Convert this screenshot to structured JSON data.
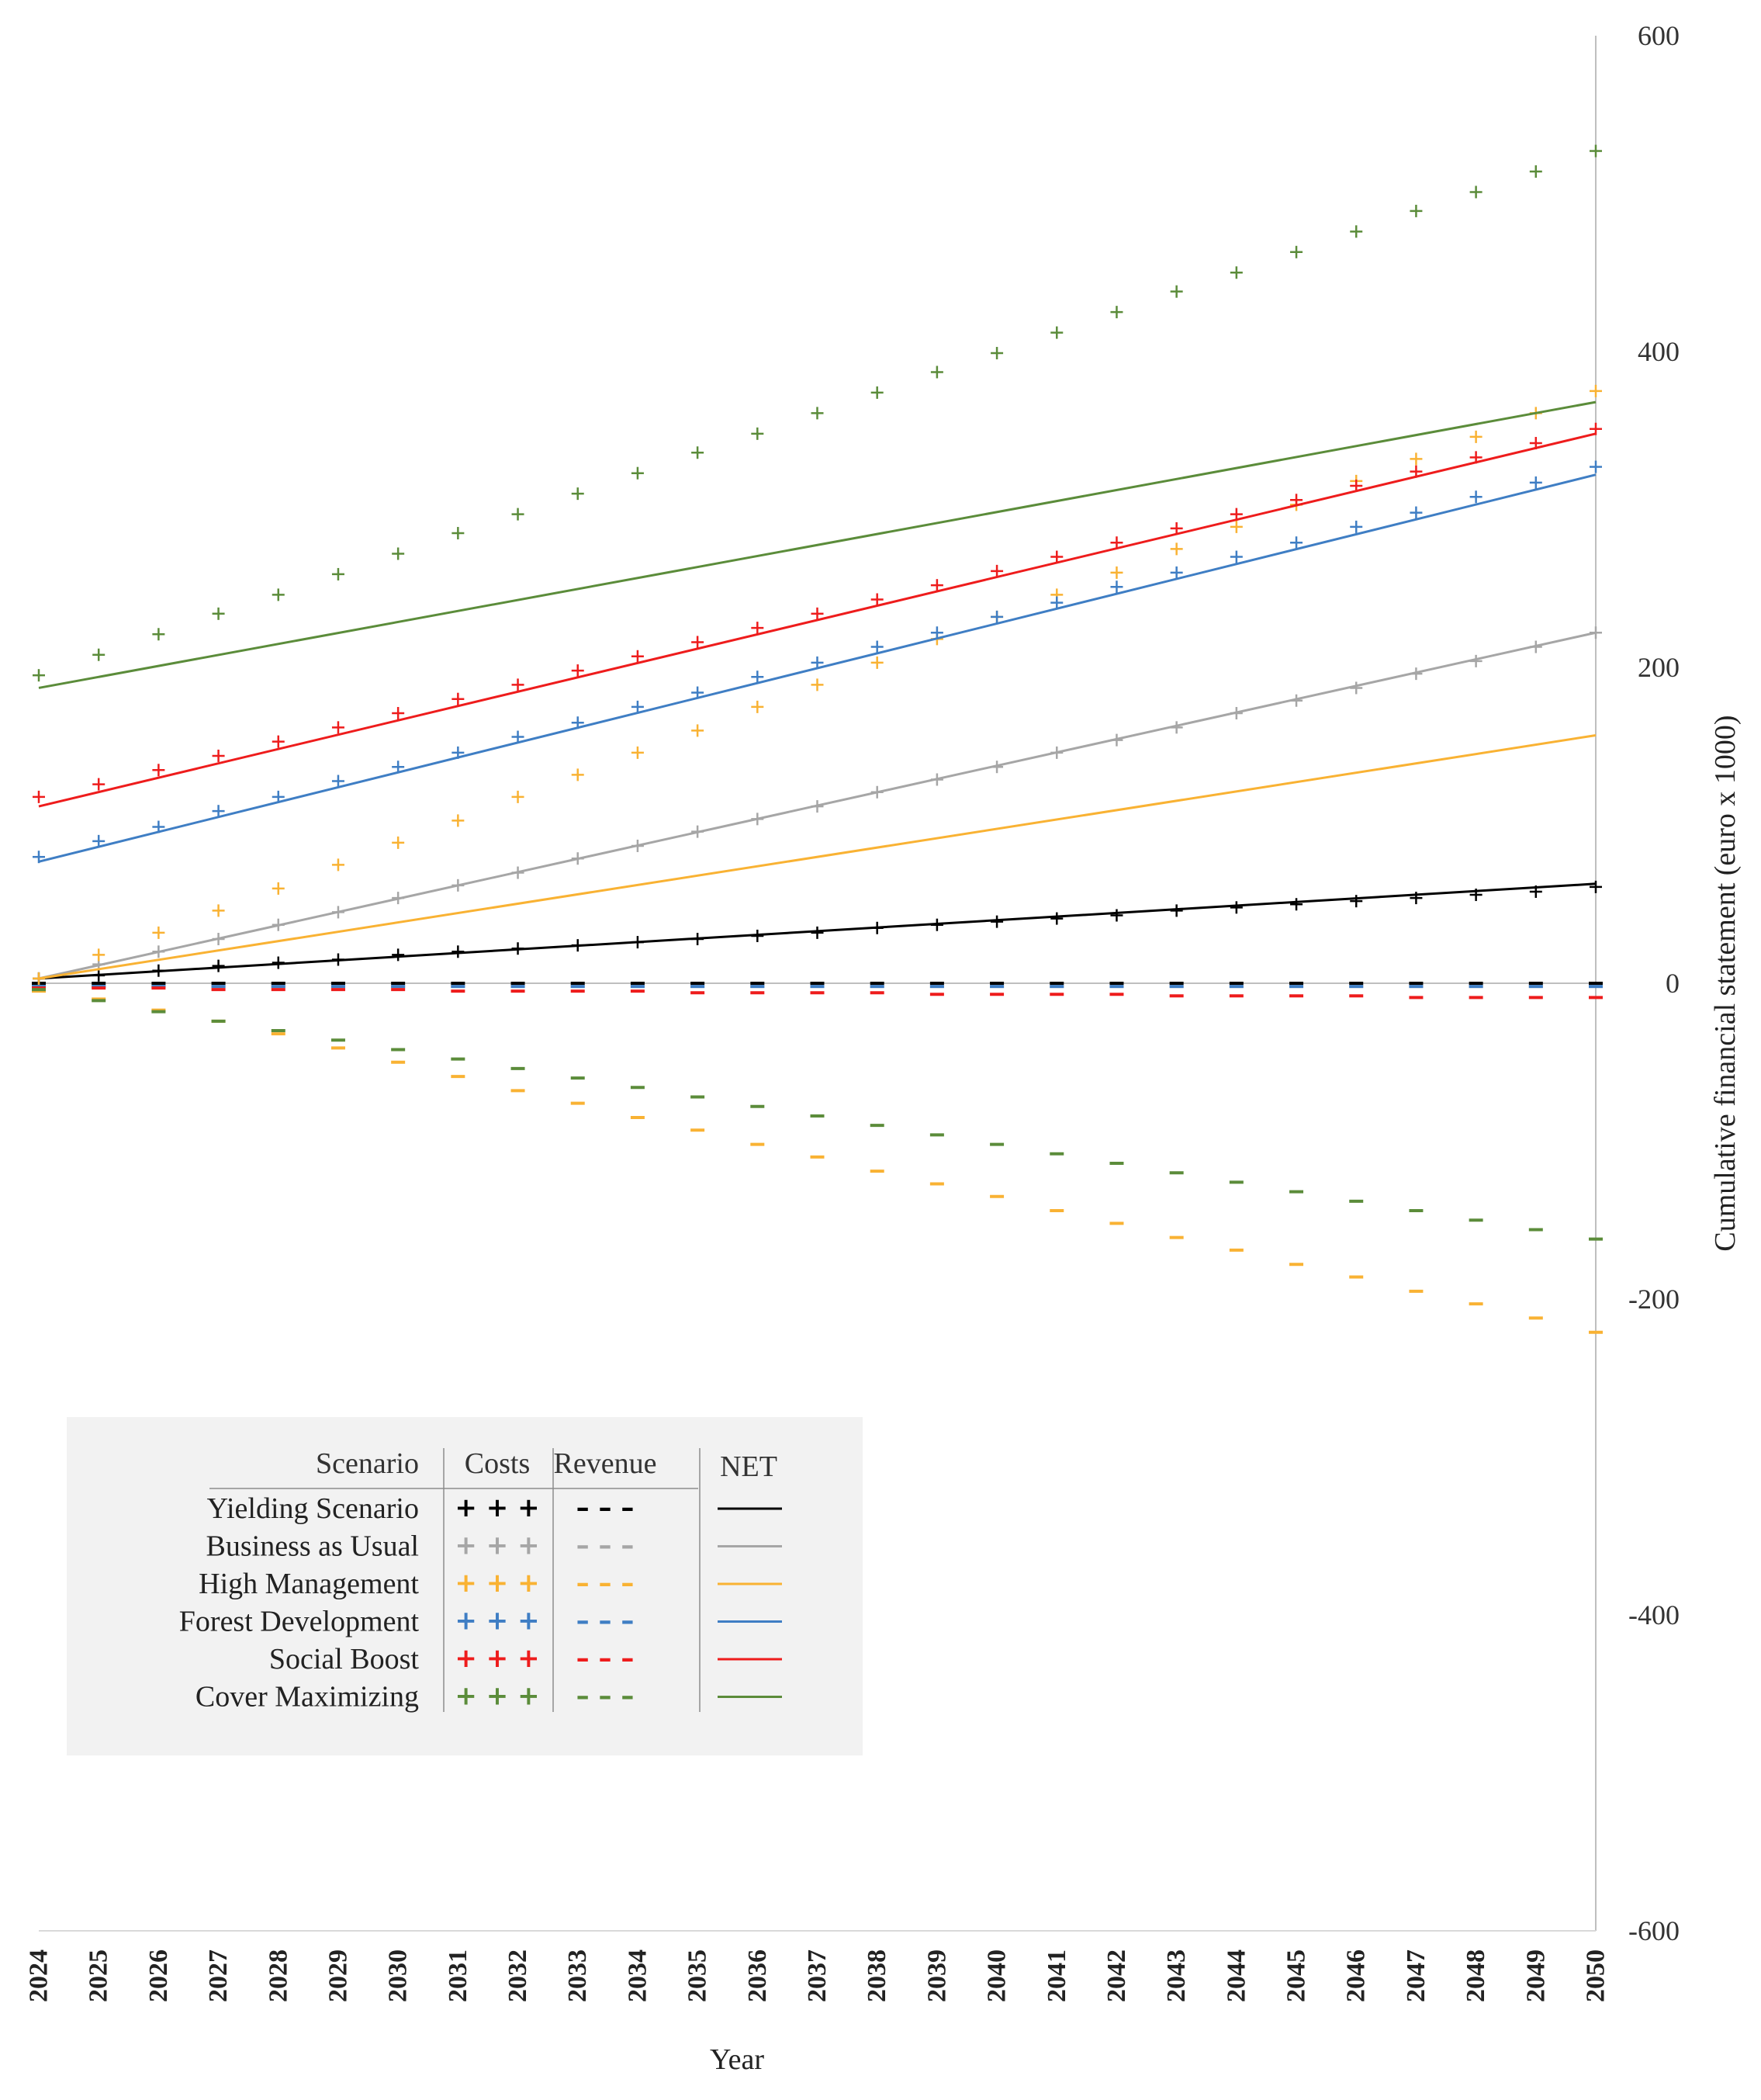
{
  "chart_data": {
    "type": "line",
    "xlabel": "Year",
    "ylabel": "Cumulative financial statement (euro x 1000)",
    "ylim": [
      -600,
      600
    ],
    "yticks": [
      600,
      400,
      200,
      0,
      -200,
      -400,
      -600
    ],
    "x": [
      2024,
      2025,
      2026,
      2027,
      2028,
      2029,
      2030,
      2031,
      2032,
      2033,
      2034,
      2035,
      2036,
      2037,
      2038,
      2039,
      2040,
      2041,
      2042,
      2043,
      2044,
      2045,
      2046,
      2047,
      2048,
      2049,
      2050
    ],
    "legend": {
      "headers": {
        "scenario": "Scenario",
        "costs": "Costs",
        "revenue": "Revenue",
        "net": "NET"
      },
      "cost_symbol": "+ + +",
      "revenue_symbol": "– – –",
      "position": "lower-left"
    },
    "series": [
      {
        "name": "Yielding Scenario",
        "color": "#000000",
        "costs": [
          3,
          5,
          8,
          11,
          13,
          15,
          18,
          20,
          22,
          24,
          26,
          28,
          30,
          32,
          35,
          37,
          39,
          41,
          43,
          46,
          48,
          50,
          52,
          54,
          56,
          58,
          61
        ],
        "revenue": [
          0,
          0,
          0,
          0,
          0,
          0,
          0,
          0,
          0,
          0,
          0,
          0,
          0,
          0,
          0,
          0,
          0,
          0,
          0,
          0,
          0,
          0,
          0,
          0,
          0,
          0,
          0
        ],
        "net_start": 3,
        "net_end": 63
      },
      {
        "name": "Business as Usual",
        "color": "#a6a6a6",
        "costs": [
          3,
          12,
          20,
          28,
          37,
          45,
          54,
          62,
          70,
          79,
          87,
          96,
          104,
          112,
          121,
          129,
          137,
          146,
          154,
          162,
          171,
          179,
          187,
          196,
          204,
          213,
          222
        ],
        "revenue": [
          -2,
          -2,
          -2,
          -2,
          -2,
          -2,
          -2,
          -2,
          -2,
          -2,
          -2,
          -2,
          -2,
          -2,
          -2,
          -2,
          -2,
          -2,
          -2,
          -2,
          -2,
          -2,
          -2,
          -2,
          -2,
          -2,
          -2
        ],
        "net_start": 3,
        "net_end": 222
      },
      {
        "name": "High Management",
        "color": "#f9b233",
        "costs": [
          3,
          18,
          32,
          46,
          60,
          75,
          89,
          103,
          118,
          132,
          146,
          160,
          175,
          189,
          203,
          218,
          232,
          246,
          260,
          275,
          289,
          303,
          318,
          332,
          346,
          361,
          375
        ],
        "revenue": [
          -5,
          -10,
          -17,
          -24,
          -32,
          -41,
          -50,
          -59,
          -68,
          -76,
          -85,
          -93,
          -102,
          -110,
          -119,
          -127,
          -135,
          -144,
          -152,
          -161,
          -169,
          -178,
          -186,
          -195,
          -203,
          -212,
          -221
        ],
        "net_start": 3,
        "net_end": 157
      },
      {
        "name": "Forest Development",
        "color": "#3f7ec4",
        "costs": [
          80,
          90,
          99,
          109,
          118,
          128,
          137,
          146,
          156,
          165,
          175,
          184,
          194,
          203,
          213,
          222,
          232,
          241,
          251,
          260,
          270,
          279,
          289,
          298,
          308,
          317,
          327
        ],
        "revenue": [
          -2,
          -2,
          -2,
          -2,
          -2,
          -2,
          -2,
          -2,
          -2,
          -2,
          -2,
          -2,
          -2,
          -2,
          -2,
          -2,
          -2,
          -2,
          -2,
          -2,
          -2,
          -2,
          -2,
          -2,
          -2,
          -2,
          -2
        ],
        "net_start": 77,
        "net_end": 322
      },
      {
        "name": "Social Boost",
        "color": "#ee1c1c",
        "costs": [
          118,
          126,
          135,
          144,
          153,
          162,
          171,
          180,
          189,
          198,
          207,
          216,
          225,
          234,
          243,
          252,
          261,
          270,
          279,
          288,
          297,
          306,
          315,
          324,
          333,
          342,
          351
        ],
        "revenue": [
          -3,
          -3,
          -3,
          -4,
          -4,
          -4,
          -4,
          -5,
          -5,
          -5,
          -5,
          -6,
          -6,
          -6,
          -6,
          -7,
          -7,
          -7,
          -7,
          -8,
          -8,
          -8,
          -8,
          -9,
          -9,
          -9,
          -9
        ],
        "net_start": 112,
        "net_end": 348
      },
      {
        "name": "Cover Maximizing",
        "color": "#5b8c3a",
        "costs": [
          195,
          208,
          221,
          234,
          246,
          259,
          272,
          285,
          297,
          310,
          323,
          336,
          348,
          361,
          374,
          387,
          399,
          412,
          425,
          438,
          450,
          463,
          476,
          489,
          501,
          514,
          527
        ],
        "revenue": [
          -4,
          -11,
          -18,
          -24,
          -30,
          -36,
          -42,
          -48,
          -54,
          -60,
          -66,
          -72,
          -78,
          -84,
          -90,
          -96,
          -102,
          -108,
          -114,
          -120,
          -126,
          -132,
          -138,
          -144,
          -150,
          -156,
          -162
        ],
        "net_start": 187,
        "net_end": 368
      }
    ]
  }
}
